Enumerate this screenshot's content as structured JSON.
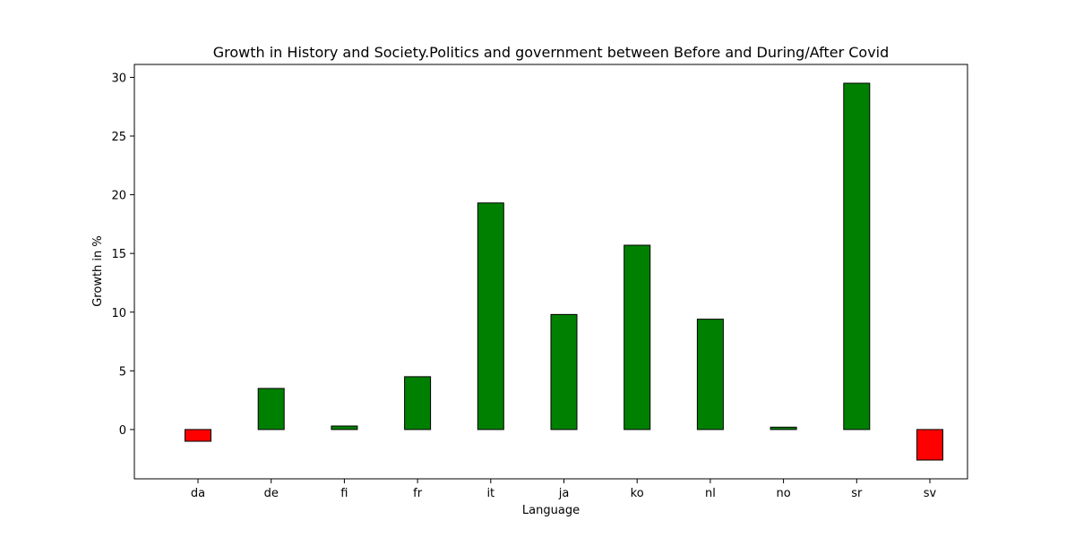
{
  "chart_data": {
    "type": "bar",
    "title": "Growth in History and Society.Politics and government between Before and During/After Covid",
    "xlabel": "Language",
    "ylabel": "Growth in %",
    "categories": [
      "da",
      "de",
      "fi",
      "fr",
      "it",
      "ja",
      "ko",
      "nl",
      "no",
      "sr",
      "sv"
    ],
    "values": [
      -1.0,
      3.5,
      0.3,
      4.5,
      19.3,
      9.8,
      15.7,
      9.4,
      0.2,
      29.5,
      -2.6
    ],
    "ylim": [
      -4.2,
      31.1
    ],
    "yticks": [
      0,
      5,
      10,
      15,
      20,
      25,
      30
    ],
    "grid": false,
    "legend": "none",
    "colors": {
      "positive": "#008000",
      "negative": "#ff0000",
      "edge": "#000000"
    }
  }
}
